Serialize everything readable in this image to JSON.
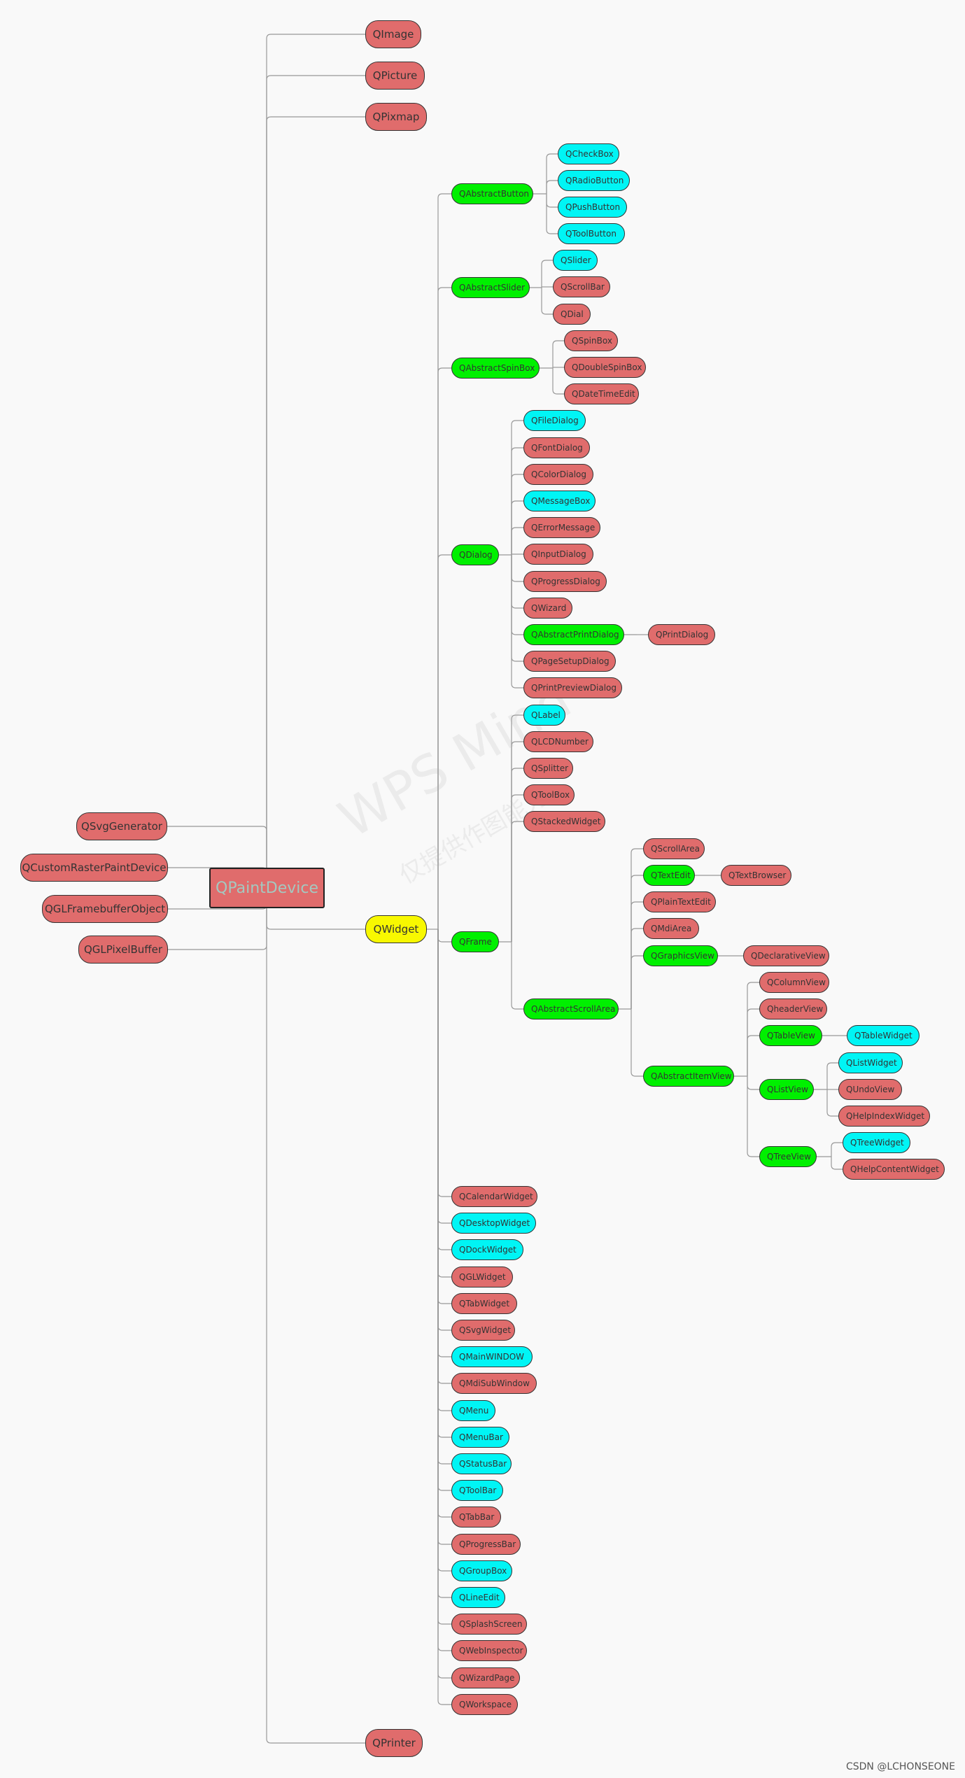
{
  "root": {
    "label": "QPaintDevice"
  },
  "left_nodes": [
    {
      "label": "QSvgGenerator"
    },
    {
      "label": "QCustomRasterPaintDevice"
    },
    {
      "label": "QGLFramebufferObject"
    },
    {
      "label": "QGLPixelBuffer"
    }
  ],
  "right_top": [
    {
      "label": "QImage"
    },
    {
      "label": "QPicture"
    },
    {
      "label": "QPixmap"
    }
  ],
  "qwidget": {
    "label": "QWidget"
  },
  "qprinter": {
    "label": "QPrinter"
  },
  "abstract_button": {
    "label": "QAbstractButton",
    "children": [
      "QCheckBox",
      "QRadioButton",
      "QPushButton",
      "QToolButton"
    ]
  },
  "abstract_slider": {
    "label": "QAbstractSlider",
    "children": [
      "QSlider",
      "QScrollBar",
      "QDial"
    ]
  },
  "abstract_spinbox": {
    "label": "QAbstractSpinBox",
    "children": [
      "QSpinBox",
      "QDoubleSpinBox",
      "QDateTimeEdit"
    ]
  },
  "dialog": {
    "label": "QDialog",
    "children": [
      "QFileDialog",
      "QFontDialog",
      "QColorDialog",
      "QMessageBox",
      "QErrorMessage",
      "QInputDialog",
      "QProgressDialog",
      "QWizard",
      "QAbstractPrintDialog",
      "QPageSetupDialog",
      "QPrintPreviewDialog"
    ]
  },
  "print_dialog": {
    "label": "QPrintDialog"
  },
  "frame": {
    "label": "QFrame",
    "children": [
      "QLabel",
      "QLCDNumber",
      "QSplitter",
      "QToolBox",
      "QStackedWidget",
      "QAbstractScrollArea"
    ]
  },
  "scroll_area": {
    "children": [
      "QScrollArea",
      "QTextEdit",
      "QPlainTextEdit",
      "QMdiArea",
      "QGraphicsView",
      "QAbstractItemView"
    ]
  },
  "text_browser": {
    "label": "QTextBrowser"
  },
  "declarative_view": {
    "label": "QDeclarativeView"
  },
  "item_view": {
    "children": [
      "QColumnView",
      "QheaderView",
      "QTableView",
      "QListView",
      "QTreeView"
    ]
  },
  "table_widget": {
    "label": "QTableWidget"
  },
  "list_view_children": [
    "QListWidget",
    "QUndoView",
    "QHelpIndexWidget"
  ],
  "tree_view_children": [
    "QTreeWidget",
    "QHelpContentWidget"
  ],
  "widget_list": [
    "QCalendarWidget",
    "QDesktopWidget",
    "QDockWidget",
    "QGLWidget",
    "QTabWidget",
    "QSvgWidget",
    "QMainWINDOW",
    "QMdiSubWindow",
    "QMenu",
    "QMenuBar",
    "QStatusBar",
    "QToolBar",
    "QTabBar",
    "QProgressBar",
    "QGroupBox",
    "QLineEdit",
    "QSplashScreen",
    "QWebInspector",
    "QWizardPage",
    "QWorkspace"
  ],
  "watermark": {
    "line1": "WPS Mind",
    "line2": "仅提供作图能力"
  },
  "credit": "CSDN @LCHONSEONE",
  "colors": {
    "red": "#e06c6c",
    "cyan": "#00f5f5",
    "green": "#00f000",
    "yellow": "#f8f800",
    "edge": "#999999"
  }
}
